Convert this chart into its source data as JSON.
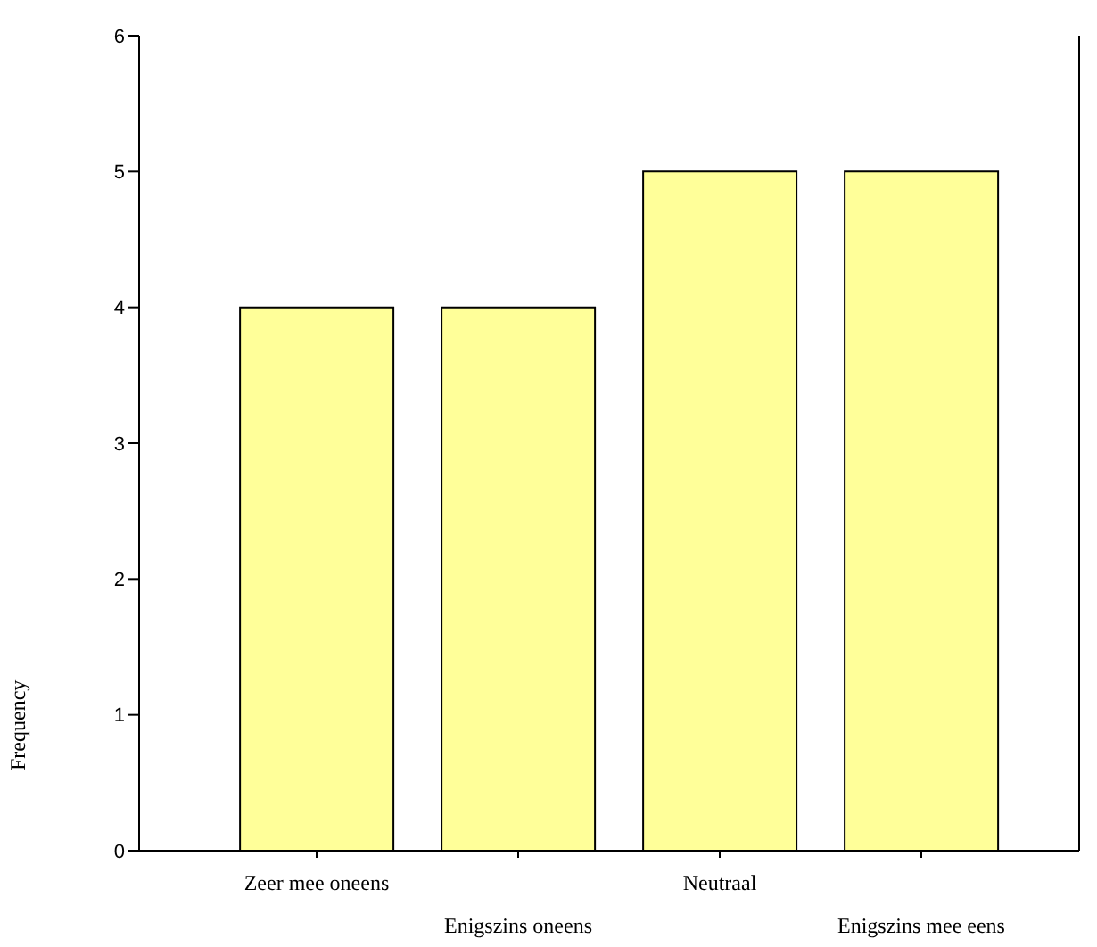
{
  "chart_data": {
    "type": "bar",
    "ylabel": "Frequency",
    "categories": [
      "Zeer mee oneens",
      "Enigszins oneens",
      "Neutraal",
      "Enigszins mee eens"
    ],
    "values": [
      4,
      4,
      5,
      5
    ],
    "color": "#ffff99",
    "ylim": [
      0,
      6
    ],
    "yticks": [
      0,
      1,
      2,
      3,
      4,
      5,
      6
    ],
    "grid": false,
    "legend": false
  }
}
